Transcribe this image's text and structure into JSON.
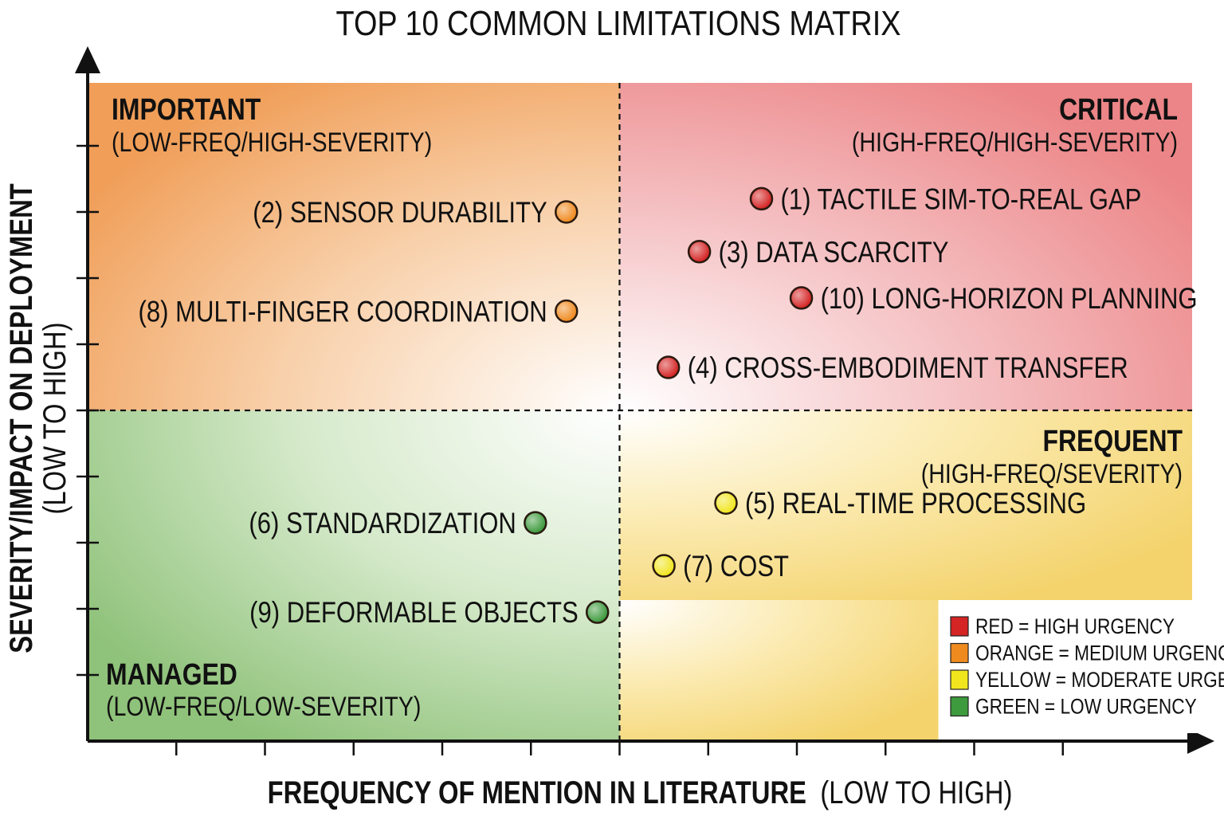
{
  "chart_data": {
    "type": "scatter",
    "title": "TOP 10 COMMON LIMITATIONS MATRIX",
    "xlabel": {
      "bold": "FREQUENCY OF MENTION IN LITERATURE",
      "normal": "(LOW TO HIGH)"
    },
    "ylabel": {
      "bold": "SEVERITY/IMPACT ON DEPLOYMENT",
      "normal": "(LOW TO HIGH)"
    },
    "xlim": [
      0,
      12
    ],
    "ylim": [
      0,
      10
    ],
    "x_ticks": [
      1,
      2,
      3,
      4,
      5,
      6,
      7,
      8,
      9,
      10,
      11
    ],
    "y_ticks": [
      1,
      2,
      3,
      4,
      5,
      6,
      7,
      8,
      9
    ],
    "grid": false,
    "divider": {
      "x": 6,
      "y": 5
    },
    "quadrants": [
      {
        "key": "important",
        "title": "IMPORTANT",
        "subtitle": "(LOW-FREQ/HIGH-SEVERITY)",
        "align": "left",
        "color": "#f2a05a"
      },
      {
        "key": "critical",
        "title": "CRITICAL",
        "subtitle": "(HIGH-FREQ/HIGH-SEVERITY)",
        "align": "right",
        "color": "#ee8a8c"
      },
      {
        "key": "frequent",
        "title": "FREQUENT",
        "subtitle": "(HIGH-FREQ/SEVERITY)",
        "align": "right",
        "color": "#f6da74"
      },
      {
        "key": "managed",
        "title": "MANAGED",
        "subtitle": "(LOW-FREQ/LOW-SEVERITY)",
        "align": "left",
        "color": "#8fc27a"
      }
    ],
    "points": [
      {
        "label": "(1) TACTILE SIM-TO-REAL GAP",
        "x": 7.6,
        "y": 8.2,
        "urgency": "red",
        "label_side": "right"
      },
      {
        "label": "(2) SENSOR DURABILITY",
        "x": 5.4,
        "y": 8.0,
        "urgency": "orange",
        "label_side": "left"
      },
      {
        "label": "(3) DATA SCARCITY",
        "x": 6.9,
        "y": 7.4,
        "urgency": "red",
        "label_side": "right"
      },
      {
        "label": "(4) CROSS-EMBODIMENT TRANSFER",
        "x": 6.55,
        "y": 5.65,
        "urgency": "red",
        "label_side": "right"
      },
      {
        "label": "(5) REAL-TIME PROCESSING",
        "x": 7.2,
        "y": 3.6,
        "urgency": "yellow",
        "label_side": "right"
      },
      {
        "label": "(6) STANDARDIZATION",
        "x": 5.05,
        "y": 3.3,
        "urgency": "green",
        "label_side": "left"
      },
      {
        "label": "(7) COST",
        "x": 6.5,
        "y": 2.65,
        "urgency": "yellow",
        "label_side": "right"
      },
      {
        "label": "(8) MULTI-FINGER COORDINATION",
        "x": 5.4,
        "y": 6.5,
        "urgency": "orange",
        "label_side": "left"
      },
      {
        "label": "(9) DEFORMABLE OBJECTS",
        "x": 5.75,
        "y": 1.95,
        "urgency": "green",
        "label_side": "left"
      },
      {
        "label": "(10) LONG-HORIZON PLANNING",
        "x": 8.05,
        "y": 6.7,
        "urgency": "red",
        "label_side": "right"
      }
    ],
    "colors": {
      "red": "#d42424",
      "orange": "#ef8a1f",
      "yellow": "#f1e51e",
      "green": "#3d9a3d"
    },
    "legend": {
      "placement": "bottom-right",
      "entries": [
        {
          "key": "red",
          "label": "RED = HIGH URGENCY"
        },
        {
          "key": "orange",
          "label": "ORANGE = MEDIUM URGENCY"
        },
        {
          "key": "yellow",
          "label": "YELLOW = MODERATE URGENCY"
        },
        {
          "key": "green",
          "label": "GREEN = LOW URGENCY"
        }
      ]
    }
  }
}
